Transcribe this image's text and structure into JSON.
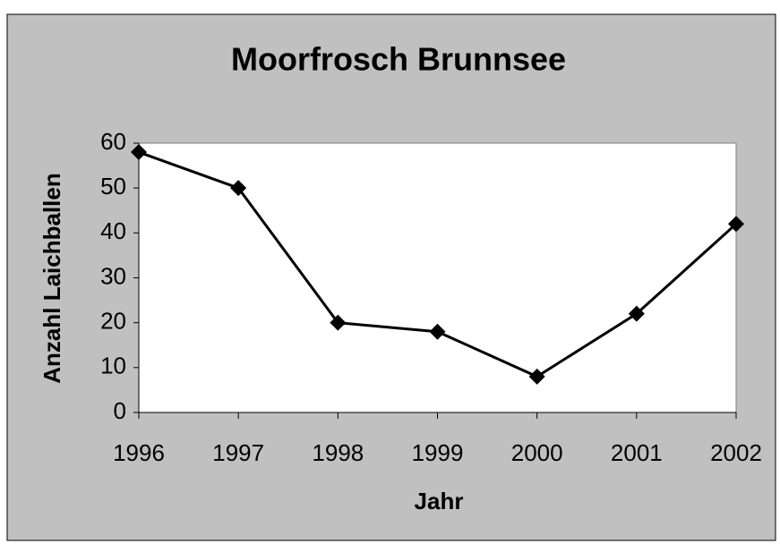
{
  "chart_data": {
    "type": "line",
    "title": "Moorfrosch Brunnsee",
    "x_label": "Jahr",
    "y_label": "Anzahl Laichballen",
    "categories": [
      "1996",
      "1997",
      "1998",
      "1999",
      "2000",
      "2001",
      "2002"
    ],
    "values": [
      58,
      50,
      20,
      18,
      8,
      22,
      42
    ],
    "color": "#000000",
    "ylim": [
      0,
      60
    ],
    "yticks": [
      0,
      10,
      20,
      30,
      40,
      50,
      60
    ],
    "grid": false
  }
}
